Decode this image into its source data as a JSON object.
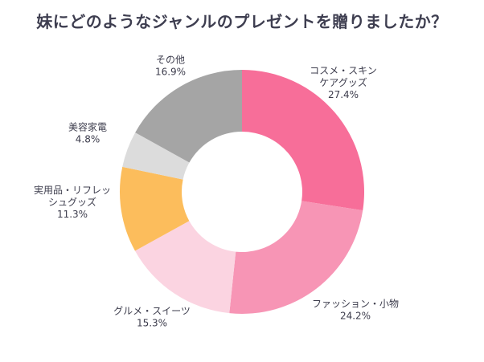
{
  "chart_data": {
    "type": "pie",
    "donut": true,
    "title": "妹にどのようなジャンルのプレゼントを贈りましたか？",
    "slices": [
      {
        "label": [
          "コスメ・スキン",
          "ケアグッズ"
        ],
        "percent_text": "27.4%",
        "value": 27.4,
        "color": "#f76e99"
      },
      {
        "label": [
          "ファッション・小物"
        ],
        "percent_text": "24.2%",
        "value": 24.2,
        "color": "#f795b5"
      },
      {
        "label": [
          "グルメ・スイーツ"
        ],
        "percent_text": "15.3%",
        "value": 15.3,
        "color": "#fbd4e1"
      },
      {
        "label": [
          "実用品・リフレッ",
          "シュグッズ"
        ],
        "percent_text": "11.3%",
        "value": 11.3,
        "color": "#fcbd5c"
      },
      {
        "label": [
          "美容家電"
        ],
        "percent_text": "4.8%",
        "value": 4.8,
        "color": "#dcdcdc"
      },
      {
        "label": [
          "その他"
        ],
        "percent_text": "16.9%",
        "value": 16.9,
        "color": "#a5a5a5"
      }
    ]
  }
}
